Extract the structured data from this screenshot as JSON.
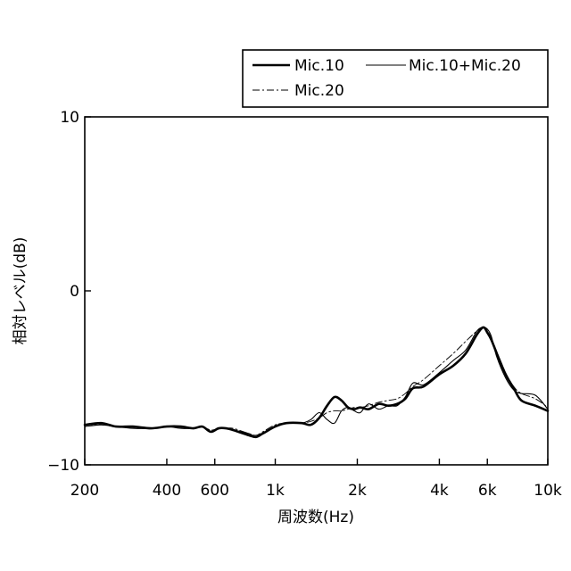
{
  "chart_data": {
    "type": "line",
    "title": "",
    "xlabel": "周波数(Hz)",
    "ylabel": "相対レベル(dB)",
    "x_scale": "log",
    "xlim": [
      200,
      10000
    ],
    "ylim": [
      -10,
      10
    ],
    "x_ticks": [
      {
        "value": 200,
        "label": "200"
      },
      {
        "value": 400,
        "label": "400"
      },
      {
        "value": 600,
        "label": "600"
      },
      {
        "value": 1000,
        "label": "1k"
      },
      {
        "value": 2000,
        "label": "2k"
      },
      {
        "value": 4000,
        "label": "4k"
      },
      {
        "value": 6000,
        "label": "6k"
      },
      {
        "value": 10000,
        "label": "10k"
      }
    ],
    "y_ticks": [
      {
        "value": 10,
        "label": "10"
      },
      {
        "value": 0,
        "label": "0"
      },
      {
        "value": -10,
        "label": "−10"
      }
    ],
    "grid": false,
    "legend": "top-right",
    "series": [
      {
        "name": "Mic.10",
        "style": "thick",
        "x": [
          200,
          230,
          260,
          300,
          350,
          400,
          450,
          500,
          540,
          580,
          620,
          660,
          700,
          800,
          850,
          900,
          1000,
          1100,
          1250,
          1350,
          1450,
          1550,
          1650,
          1750,
          1850,
          1950,
          2050,
          2200,
          2400,
          2600,
          2800,
          3000,
          3200,
          3500,
          4000,
          4500,
          5000,
          5500,
          5800,
          6000,
          6200,
          6500,
          7000,
          7500,
          8000,
          9000,
          10000
        ],
        "y": [
          -7.7,
          -7.6,
          -7.8,
          -7.8,
          -7.9,
          -7.8,
          -7.8,
          -7.9,
          -7.8,
          -8.1,
          -7.9,
          -7.9,
          -8.0,
          -8.3,
          -8.4,
          -8.2,
          -7.8,
          -7.6,
          -7.6,
          -7.7,
          -7.3,
          -6.6,
          -6.1,
          -6.3,
          -6.7,
          -6.8,
          -6.7,
          -6.8,
          -6.5,
          -6.6,
          -6.5,
          -6.2,
          -5.6,
          -5.5,
          -4.8,
          -4.3,
          -3.6,
          -2.5,
          -2.1,
          -2.4,
          -2.8,
          -3.6,
          -4.8,
          -5.6,
          -6.3,
          -6.6,
          -6.9
        ]
      },
      {
        "name": "Mic.10+Mic.20",
        "style": "thin",
        "x": [
          200,
          230,
          260,
          300,
          350,
          400,
          450,
          500,
          540,
          580,
          620,
          660,
          700,
          800,
          850,
          900,
          1000,
          1100,
          1250,
          1350,
          1450,
          1550,
          1650,
          1750,
          1850,
          1950,
          2050,
          2200,
          2400,
          2600,
          2800,
          3000,
          3200,
          3500,
          4000,
          4500,
          5000,
          5500,
          5800,
          6000,
          6200,
          6500,
          7000,
          7500,
          8000,
          9000,
          10000
        ],
        "y": [
          -7.8,
          -7.7,
          -7.8,
          -7.9,
          -7.9,
          -7.8,
          -7.9,
          -7.9,
          -7.8,
          -8.1,
          -7.9,
          -7.9,
          -8.0,
          -8.2,
          -8.4,
          -8.2,
          -7.8,
          -7.6,
          -7.6,
          -7.4,
          -7.0,
          -7.4,
          -7.6,
          -6.9,
          -6.7,
          -6.9,
          -7.0,
          -6.5,
          -6.8,
          -6.6,
          -6.6,
          -6.1,
          -5.3,
          -5.4,
          -4.7,
          -4.0,
          -3.4,
          -2.3,
          -2.1,
          -2.2,
          -2.6,
          -3.8,
          -5.0,
          -5.7,
          -5.9,
          -6.0,
          -6.8
        ]
      },
      {
        "name": "Mic.20",
        "style": "dashdot",
        "x": [
          200,
          230,
          260,
          300,
          350,
          400,
          450,
          500,
          540,
          580,
          620,
          660,
          700,
          800,
          850,
          900,
          1000,
          1100,
          1250,
          1350,
          1450,
          1550,
          1650,
          1750,
          1850,
          1950,
          2050,
          2200,
          2400,
          2600,
          2800,
          3000,
          3200,
          3500,
          4000,
          4500,
          5000,
          5500,
          5800,
          6000,
          6200,
          6500,
          7000,
          7500,
          8000,
          9000,
          10000
        ],
        "y": [
          -7.7,
          -7.7,
          -7.8,
          -7.8,
          -7.9,
          -7.8,
          -7.8,
          -7.9,
          -7.8,
          -8.0,
          -7.9,
          -7.9,
          -7.9,
          -8.2,
          -8.3,
          -8.1,
          -7.7,
          -7.6,
          -7.6,
          -7.5,
          -7.3,
          -7.0,
          -6.9,
          -6.9,
          -6.8,
          -6.7,
          -6.7,
          -6.6,
          -6.4,
          -6.3,
          -6.2,
          -5.9,
          -5.5,
          -5.1,
          -4.3,
          -3.6,
          -2.9,
          -2.3,
          -2.1,
          -2.3,
          -2.7,
          -3.5,
          -4.7,
          -5.5,
          -5.9,
          -6.2,
          -6.7
        ]
      }
    ]
  }
}
